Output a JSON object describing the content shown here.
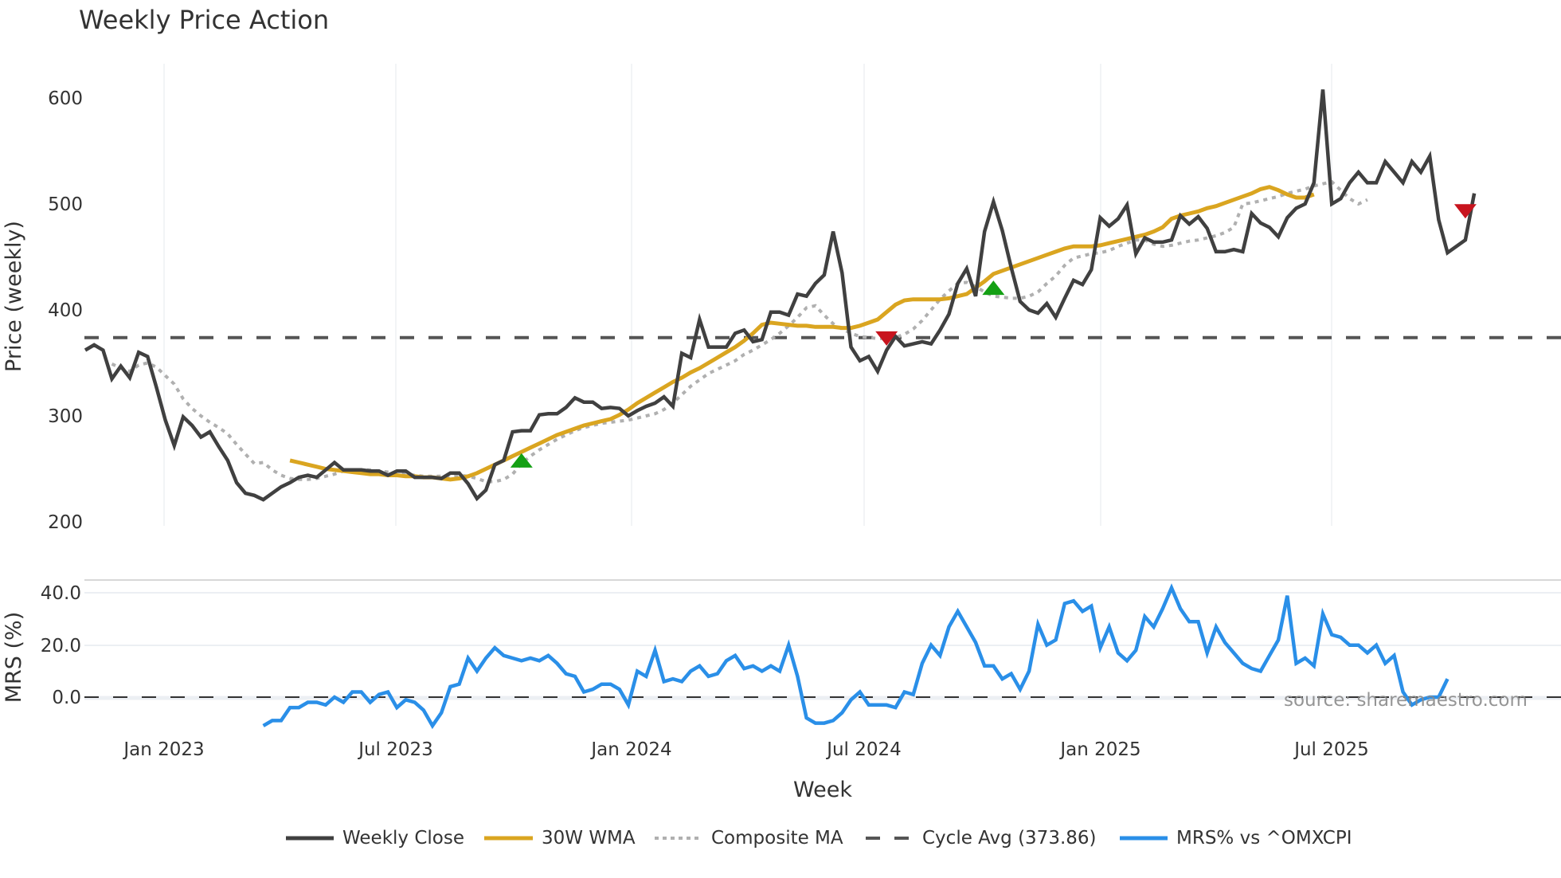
{
  "chart_data": [
    {
      "type": "line",
      "title": "Weekly Price Action",
      "xlabel": "Week",
      "ylabel": "Price (weekly)",
      "ylim": [
        200,
        630
      ],
      "yticks": [
        200,
        300,
        400,
        500,
        600
      ],
      "xticks": [
        "Jan 2023",
        "Jul 2023",
        "Jan 2024",
        "Jul 2024",
        "Jan 2025",
        "Jul 2025"
      ],
      "grid": true,
      "series": [
        {
          "name": "Weekly Close",
          "color": "#404040",
          "start_index": 0,
          "values": [
            362,
            367,
            362,
            335,
            347,
            336,
            360,
            356,
            327,
            296,
            272,
            299,
            291,
            280,
            285,
            271,
            258,
            237,
            227,
            225,
            221,
            227,
            233,
            237,
            242,
            244,
            242,
            249,
            256,
            249,
            249,
            249,
            248,
            248,
            244,
            248,
            248,
            242,
            242,
            242,
            241,
            246,
            246,
            236,
            222,
            230,
            254,
            258,
            285,
            286,
            286,
            301,
            302,
            302,
            308,
            317,
            313,
            313,
            307,
            308,
            307,
            300,
            305,
            309,
            312,
            318,
            309,
            359,
            355,
            391,
            365,
            365,
            365,
            378,
            381,
            370,
            372,
            398,
            398,
            395,
            415,
            413,
            425,
            433,
            474,
            435,
            365,
            352,
            356,
            342,
            362,
            375,
            366,
            368,
            370,
            368,
            381,
            396,
            425,
            439,
            413,
            474,
            502,
            475,
            440,
            408,
            400,
            397,
            406,
            393,
            411,
            428,
            424,
            438,
            487,
            479,
            486,
            499,
            453,
            468,
            464,
            464,
            466,
            489,
            481,
            488,
            477,
            455,
            455,
            457,
            455,
            491,
            482,
            478,
            469,
            487,
            496,
            500,
            520,
            608,
            500,
            505,
            520,
            530,
            520,
            520,
            540,
            530,
            520,
            540,
            530,
            545,
            485,
            454,
            460,
            466,
            510
          ]
        },
        {
          "name": "30W WMA",
          "color": "#DAA520",
          "start_index": 23,
          "values": [
            258,
            256,
            254,
            252,
            250,
            249,
            248,
            247,
            246,
            245,
            245,
            244,
            244,
            243,
            243,
            242,
            242,
            241,
            240,
            241,
            243,
            246,
            250,
            254,
            258,
            262,
            266,
            270,
            274,
            278,
            282,
            285,
            288,
            291,
            293,
            295,
            297,
            301,
            306,
            312,
            317,
            322,
            327,
            332,
            336,
            341,
            345,
            350,
            355,
            360,
            365,
            371,
            378,
            386,
            388,
            387,
            386,
            385,
            385,
            384,
            384,
            384,
            383,
            383,
            385,
            388,
            391,
            398,
            405,
            409,
            410,
            410,
            410,
            410,
            411,
            413,
            415,
            421,
            427,
            434,
            437,
            440,
            443,
            446,
            449,
            452,
            455,
            458,
            460,
            460,
            460,
            461,
            463,
            465,
            467,
            469,
            471,
            474,
            478,
            486,
            489,
            491,
            493,
            496,
            498,
            501,
            504,
            507,
            510,
            514,
            516,
            513,
            509,
            506,
            506,
            509
          ]
        },
        {
          "name": "Composite MA",
          "color": "#B0B0B0",
          "dash": "dot",
          "start_index": 3,
          "values": [
            349,
            345,
            342,
            348,
            350,
            346,
            338,
            330,
            316,
            307,
            300,
            294,
            289,
            283,
            273,
            264,
            255,
            256,
            249,
            244,
            241,
            240,
            240,
            241,
            243,
            245,
            248,
            249,
            249,
            249,
            248,
            247,
            246,
            245,
            244,
            243,
            243,
            243,
            243,
            244,
            243,
            241,
            238,
            238,
            240,
            245,
            255,
            262,
            268,
            273,
            278,
            282,
            286,
            289,
            291,
            293,
            294,
            295,
            296,
            298,
            300,
            302,
            306,
            312,
            320,
            328,
            334,
            340,
            344,
            348,
            352,
            358,
            362,
            367,
            372,
            378,
            385,
            393,
            402,
            404,
            395,
            387,
            382,
            378,
            375,
            374,
            373,
            373,
            374,
            377,
            382,
            390,
            400,
            410,
            418,
            425,
            426,
            422,
            417,
            413,
            412,
            411,
            411,
            413,
            417,
            425,
            432,
            442,
            449,
            451,
            453,
            454,
            456,
            460,
            463,
            466,
            466,
            462,
            460,
            461,
            463,
            465,
            466,
            468,
            470,
            473,
            478,
            500,
            501,
            503,
            505,
            507,
            510,
            512,
            514,
            517,
            519,
            521,
            513,
            505,
            500,
            504
          ]
        },
        {
          "name": "Cycle Avg (373.86)",
          "color": "#555555",
          "dash": "dash",
          "constant": 373.86
        }
      ],
      "annotations": [
        {
          "type": "buy-signal",
          "shape": "triangle-up",
          "color": "#14A014",
          "index": 49,
          "value": 258
        },
        {
          "type": "sell-signal",
          "shape": "triangle-down",
          "color": "#C8141E",
          "index": 90,
          "value": 373
        },
        {
          "type": "buy-signal",
          "shape": "triangle-up",
          "color": "#14A014",
          "index": 102,
          "value": 421
        },
        {
          "type": "sell-signal",
          "shape": "triangle-down",
          "color": "#C8141E",
          "index": 155,
          "value": 493
        }
      ]
    },
    {
      "type": "line",
      "title": "",
      "xlabel": "Week",
      "ylabel": "MRS (%)",
      "ylim": [
        -13,
        43
      ],
      "yticks": [
        0.0,
        20.0,
        40.0
      ],
      "ytick_labels": [
        "0.0",
        "20.0",
        "40.0"
      ],
      "series": [
        {
          "name": "MRS% vs ^OMXCPI",
          "color": "#2A8FE8",
          "start_index": 20,
          "values": [
            -11,
            -9,
            -9,
            -4,
            -4,
            -2,
            -2,
            -3,
            0,
            -2,
            2,
            2,
            -2,
            1,
            2,
            -4,
            -1,
            -2,
            -5,
            -11,
            -6,
            4,
            5,
            15,
            10,
            15,
            19,
            16,
            15,
            14,
            15,
            14,
            16,
            13,
            9,
            8,
            2,
            3,
            5,
            5,
            3,
            -3,
            10,
            8,
            18,
            6,
            7,
            6,
            10,
            12,
            8,
            9,
            14,
            16,
            11,
            12,
            10,
            12,
            10,
            20,
            8,
            -8,
            -10,
            -10,
            -9,
            -6,
            -1,
            2,
            -3,
            -3,
            -3,
            -4,
            2,
            1,
            13,
            20,
            16,
            27,
            33,
            27,
            21,
            12,
            12,
            7,
            9,
            3,
            10,
            28,
            20,
            22,
            36,
            37,
            33,
            35,
            19,
            27,
            17,
            14,
            18,
            31,
            27,
            34,
            42,
            34,
            29,
            29,
            17,
            27,
            21,
            17,
            13,
            11,
            10,
            16,
            22,
            39,
            13,
            15,
            12,
            32,
            24,
            23,
            20,
            20,
            17,
            20,
            13,
            16,
            2,
            -3,
            -1,
            0,
            0,
            7
          ]
        },
        {
          "name": "Zero line",
          "color": "#333333",
          "dash": "dash",
          "constant": 0
        }
      ]
    }
  ],
  "header": {
    "title": "Weekly Price Action"
  },
  "axes": {
    "price_ylabel": "Price (weekly)",
    "mrs_ylabel": "MRS (%)",
    "xlabel": "Week",
    "price_ticks": [
      "600",
      "500",
      "400",
      "300",
      "200"
    ],
    "mrs_ticks": [
      "40.0",
      "20.0",
      "0.0"
    ],
    "x_ticks": [
      "Jan 2023",
      "Jul 2023",
      "Jan 2024",
      "Jul 2024",
      "Jan 2025",
      "Jul 2025"
    ]
  },
  "legend": [
    {
      "label": "Weekly Close",
      "color": "#404040",
      "style": "solid"
    },
    {
      "label": "30W WMA",
      "color": "#DAA520",
      "style": "solid"
    },
    {
      "label": "Composite MA",
      "color": "#B0B0B0",
      "style": "dot"
    },
    {
      "label": "Cycle Avg (373.86)",
      "color": "#555555",
      "style": "dash"
    },
    {
      "label": "MRS% vs ^OMXCPI",
      "color": "#2A8FE8",
      "style": "solid"
    }
  ],
  "source": "source: sharemaestro.com"
}
